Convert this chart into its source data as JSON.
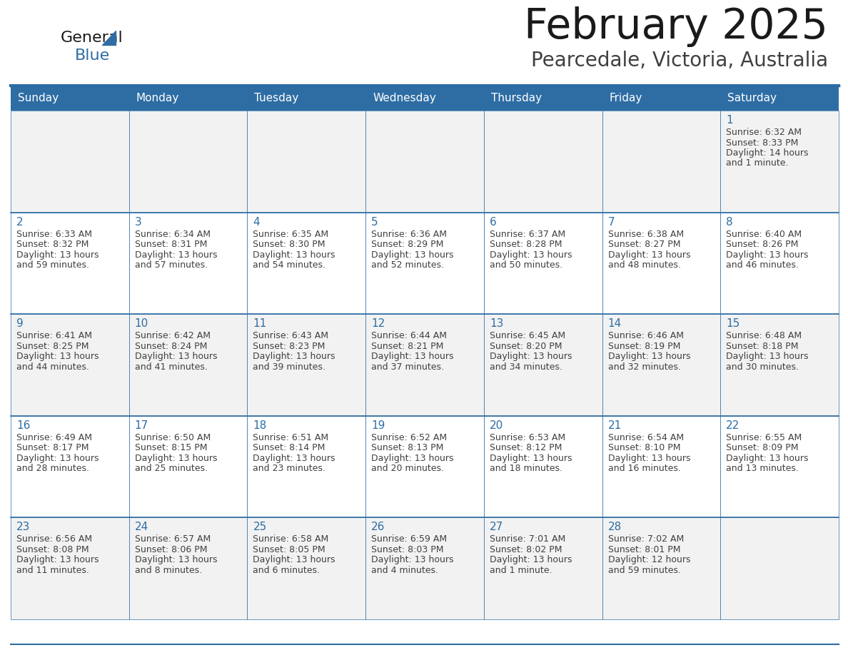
{
  "title": "February 2025",
  "subtitle": "Pearcedale, Victoria, Australia",
  "days_of_week": [
    "Sunday",
    "Monday",
    "Tuesday",
    "Wednesday",
    "Thursday",
    "Friday",
    "Saturday"
  ],
  "header_bg": "#2E6DA4",
  "header_text_color": "#FFFFFF",
  "row_bg_odd": "#F2F2F2",
  "row_bg_even": "#FFFFFF",
  "border_color": "#2E6DA4",
  "cell_border_color": "#C8C8C8",
  "text_color": "#404040",
  "title_color": "#1A1A1A",
  "subtitle_color": "#404040",
  "day_num_color": "#2E6DA4",
  "calendar_data": [
    [
      null,
      null,
      null,
      null,
      null,
      null,
      {
        "day": "1",
        "sunrise": "6:32 AM",
        "sunset": "8:33 PM",
        "daylight": "14 hours",
        "daylight2": "and 1 minute."
      }
    ],
    [
      {
        "day": "2",
        "sunrise": "6:33 AM",
        "sunset": "8:32 PM",
        "daylight": "13 hours",
        "daylight2": "and 59 minutes."
      },
      {
        "day": "3",
        "sunrise": "6:34 AM",
        "sunset": "8:31 PM",
        "daylight": "13 hours",
        "daylight2": "and 57 minutes."
      },
      {
        "day": "4",
        "sunrise": "6:35 AM",
        "sunset": "8:30 PM",
        "daylight": "13 hours",
        "daylight2": "and 54 minutes."
      },
      {
        "day": "5",
        "sunrise": "6:36 AM",
        "sunset": "8:29 PM",
        "daylight": "13 hours",
        "daylight2": "and 52 minutes."
      },
      {
        "day": "6",
        "sunrise": "6:37 AM",
        "sunset": "8:28 PM",
        "daylight": "13 hours",
        "daylight2": "and 50 minutes."
      },
      {
        "day": "7",
        "sunrise": "6:38 AM",
        "sunset": "8:27 PM",
        "daylight": "13 hours",
        "daylight2": "and 48 minutes."
      },
      {
        "day": "8",
        "sunrise": "6:40 AM",
        "sunset": "8:26 PM",
        "daylight": "13 hours",
        "daylight2": "and 46 minutes."
      }
    ],
    [
      {
        "day": "9",
        "sunrise": "6:41 AM",
        "sunset": "8:25 PM",
        "daylight": "13 hours",
        "daylight2": "and 44 minutes."
      },
      {
        "day": "10",
        "sunrise": "6:42 AM",
        "sunset": "8:24 PM",
        "daylight": "13 hours",
        "daylight2": "and 41 minutes."
      },
      {
        "day": "11",
        "sunrise": "6:43 AM",
        "sunset": "8:23 PM",
        "daylight": "13 hours",
        "daylight2": "and 39 minutes."
      },
      {
        "day": "12",
        "sunrise": "6:44 AM",
        "sunset": "8:21 PM",
        "daylight": "13 hours",
        "daylight2": "and 37 minutes."
      },
      {
        "day": "13",
        "sunrise": "6:45 AM",
        "sunset": "8:20 PM",
        "daylight": "13 hours",
        "daylight2": "and 34 minutes."
      },
      {
        "day": "14",
        "sunrise": "6:46 AM",
        "sunset": "8:19 PM",
        "daylight": "13 hours",
        "daylight2": "and 32 minutes."
      },
      {
        "day": "15",
        "sunrise": "6:48 AM",
        "sunset": "8:18 PM",
        "daylight": "13 hours",
        "daylight2": "and 30 minutes."
      }
    ],
    [
      {
        "day": "16",
        "sunrise": "6:49 AM",
        "sunset": "8:17 PM",
        "daylight": "13 hours",
        "daylight2": "and 28 minutes."
      },
      {
        "day": "17",
        "sunrise": "6:50 AM",
        "sunset": "8:15 PM",
        "daylight": "13 hours",
        "daylight2": "and 25 minutes."
      },
      {
        "day": "18",
        "sunrise": "6:51 AM",
        "sunset": "8:14 PM",
        "daylight": "13 hours",
        "daylight2": "and 23 minutes."
      },
      {
        "day": "19",
        "sunrise": "6:52 AM",
        "sunset": "8:13 PM",
        "daylight": "13 hours",
        "daylight2": "and 20 minutes."
      },
      {
        "day": "20",
        "sunrise": "6:53 AM",
        "sunset": "8:12 PM",
        "daylight": "13 hours",
        "daylight2": "and 18 minutes."
      },
      {
        "day": "21",
        "sunrise": "6:54 AM",
        "sunset": "8:10 PM",
        "daylight": "13 hours",
        "daylight2": "and 16 minutes."
      },
      {
        "day": "22",
        "sunrise": "6:55 AM",
        "sunset": "8:09 PM",
        "daylight": "13 hours",
        "daylight2": "and 13 minutes."
      }
    ],
    [
      {
        "day": "23",
        "sunrise": "6:56 AM",
        "sunset": "8:08 PM",
        "daylight": "13 hours",
        "daylight2": "and 11 minutes."
      },
      {
        "day": "24",
        "sunrise": "6:57 AM",
        "sunset": "8:06 PM",
        "daylight": "13 hours",
        "daylight2": "and 8 minutes."
      },
      {
        "day": "25",
        "sunrise": "6:58 AM",
        "sunset": "8:05 PM",
        "daylight": "13 hours",
        "daylight2": "and 6 minutes."
      },
      {
        "day": "26",
        "sunrise": "6:59 AM",
        "sunset": "8:03 PM",
        "daylight": "13 hours",
        "daylight2": "and 4 minutes."
      },
      {
        "day": "27",
        "sunrise": "7:01 AM",
        "sunset": "8:02 PM",
        "daylight": "13 hours",
        "daylight2": "and 1 minute."
      },
      {
        "day": "28",
        "sunrise": "7:02 AM",
        "sunset": "8:01 PM",
        "daylight": "12 hours",
        "daylight2": "and 59 minutes."
      },
      null
    ]
  ]
}
